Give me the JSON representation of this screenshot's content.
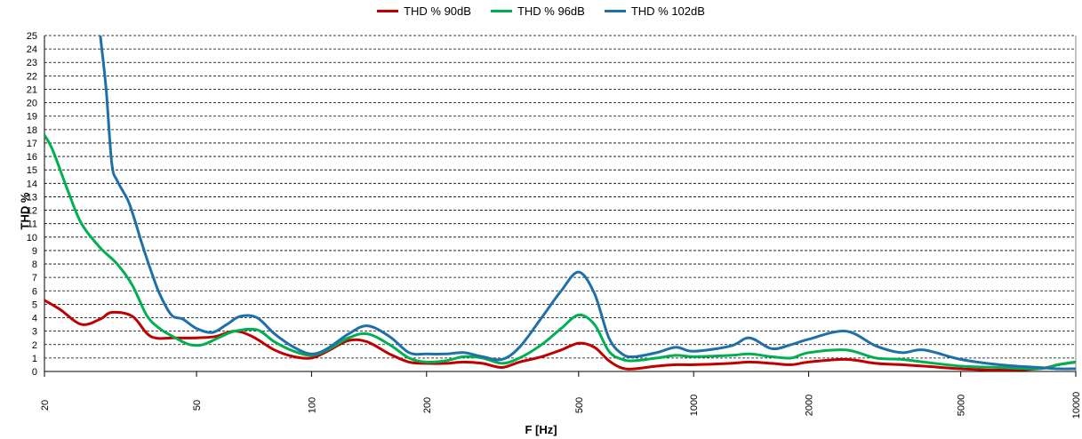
{
  "chart_data": {
    "type": "line",
    "xlabel": "F [Hz]",
    "ylabel": "THD %",
    "x_scale": "log",
    "xlim": [
      20,
      10000
    ],
    "ylim": [
      0,
      25
    ],
    "x_ticks": [
      20,
      50,
      100,
      200,
      500,
      1000,
      2000,
      5000,
      10000
    ],
    "y_ticks": [
      0,
      1,
      2,
      3,
      4,
      5,
      6,
      7,
      8,
      9,
      10,
      11,
      12,
      13,
      14,
      15,
      16,
      17,
      18,
      19,
      20,
      21,
      22,
      23,
      24,
      25
    ],
    "grid": "horizontal-dashed",
    "legend": "top-center",
    "series": [
      {
        "name": "THD % 90dB",
        "color": "#c00000",
        "points": [
          [
            20,
            5.3
          ],
          [
            22,
            4.6
          ],
          [
            25,
            3.5
          ],
          [
            28,
            3.9
          ],
          [
            30,
            4.4
          ],
          [
            34,
            4.1
          ],
          [
            38,
            2.6
          ],
          [
            44,
            2.5
          ],
          [
            50,
            2.5
          ],
          [
            56,
            2.6
          ],
          [
            63,
            3.0
          ],
          [
            70,
            2.6
          ],
          [
            80,
            1.6
          ],
          [
            90,
            1.1
          ],
          [
            100,
            1.0
          ],
          [
            110,
            1.5
          ],
          [
            125,
            2.3
          ],
          [
            140,
            2.2
          ],
          [
            160,
            1.3
          ],
          [
            180,
            0.7
          ],
          [
            200,
            0.6
          ],
          [
            225,
            0.6
          ],
          [
            250,
            0.7
          ],
          [
            280,
            0.6
          ],
          [
            315,
            0.3
          ],
          [
            350,
            0.7
          ],
          [
            400,
            1.1
          ],
          [
            450,
            1.6
          ],
          [
            500,
            2.1
          ],
          [
            550,
            1.8
          ],
          [
            600,
            0.8
          ],
          [
            650,
            0.25
          ],
          [
            700,
            0.2
          ],
          [
            800,
            0.4
          ],
          [
            900,
            0.5
          ],
          [
            1000,
            0.5
          ],
          [
            1250,
            0.6
          ],
          [
            1400,
            0.7
          ],
          [
            1600,
            0.6
          ],
          [
            1800,
            0.5
          ],
          [
            2000,
            0.7
          ],
          [
            2500,
            0.9
          ],
          [
            3000,
            0.6
          ],
          [
            3500,
            0.5
          ],
          [
            4000,
            0.4
          ],
          [
            5000,
            0.2
          ],
          [
            6300,
            0.1
          ],
          [
            8000,
            0.2
          ],
          [
            9000,
            0.5
          ],
          [
            10000,
            0.7
          ]
        ]
      },
      {
        "name": "THD % 96dB",
        "color": "#00b050",
        "points": [
          [
            20,
            17.6
          ],
          [
            21,
            16.5
          ],
          [
            23,
            13.5
          ],
          [
            25,
            11
          ],
          [
            28,
            9.2
          ],
          [
            31,
            8.0
          ],
          [
            34,
            6.4
          ],
          [
            37,
            4.2
          ],
          [
            40,
            3.2
          ],
          [
            44,
            2.5
          ],
          [
            48,
            2.0
          ],
          [
            52,
            2.0
          ],
          [
            58,
            2.6
          ],
          [
            63,
            3.0
          ],
          [
            72,
            3.1
          ],
          [
            80,
            2.2
          ],
          [
            90,
            1.5
          ],
          [
            100,
            1.2
          ],
          [
            110,
            1.6
          ],
          [
            125,
            2.5
          ],
          [
            140,
            2.8
          ],
          [
            160,
            2.0
          ],
          [
            180,
            1.0
          ],
          [
            200,
            0.7
          ],
          [
            225,
            0.8
          ],
          [
            250,
            1.1
          ],
          [
            280,
            1.0
          ],
          [
            315,
            0.6
          ],
          [
            350,
            1.0
          ],
          [
            400,
            2.0
          ],
          [
            450,
            3.2
          ],
          [
            500,
            4.2
          ],
          [
            550,
            3.5
          ],
          [
            600,
            1.5
          ],
          [
            650,
            0.9
          ],
          [
            700,
            0.8
          ],
          [
            800,
            1.0
          ],
          [
            900,
            1.2
          ],
          [
            1000,
            1.1
          ],
          [
            1250,
            1.2
          ],
          [
            1400,
            1.3
          ],
          [
            1600,
            1.1
          ],
          [
            1800,
            1.0
          ],
          [
            2000,
            1.4
          ],
          [
            2500,
            1.6
          ],
          [
            3000,
            1.0
          ],
          [
            3500,
            0.9
          ],
          [
            4000,
            0.7
          ],
          [
            5000,
            0.4
          ],
          [
            6300,
            0.3
          ],
          [
            8000,
            0.2
          ],
          [
            9000,
            0.5
          ],
          [
            10000,
            0.7
          ]
        ]
      },
      {
        "name": "THD % 102dB",
        "color": "#1f6fa8",
        "points": [
          [
            28,
            25
          ],
          [
            29,
            21
          ],
          [
            30,
            15.5
          ],
          [
            31,
            14.2
          ],
          [
            33,
            12.8
          ],
          [
            34,
            11.8
          ],
          [
            36,
            9.5
          ],
          [
            38,
            7.5
          ],
          [
            40,
            5.8
          ],
          [
            43,
            4.2
          ],
          [
            46,
            3.9
          ],
          [
            50,
            3.2
          ],
          [
            55,
            2.9
          ],
          [
            60,
            3.5
          ],
          [
            65,
            4.1
          ],
          [
            72,
            4.0
          ],
          [
            80,
            2.8
          ],
          [
            90,
            1.8
          ],
          [
            100,
            1.3
          ],
          [
            110,
            1.7
          ],
          [
            125,
            2.8
          ],
          [
            140,
            3.4
          ],
          [
            160,
            2.6
          ],
          [
            180,
            1.4
          ],
          [
            200,
            1.3
          ],
          [
            225,
            1.3
          ],
          [
            250,
            1.4
          ],
          [
            280,
            1.1
          ],
          [
            315,
            0.9
          ],
          [
            350,
            1.8
          ],
          [
            400,
            4.0
          ],
          [
            450,
            6.0
          ],
          [
            500,
            7.4
          ],
          [
            550,
            5.8
          ],
          [
            600,
            2.5
          ],
          [
            650,
            1.3
          ],
          [
            700,
            1.1
          ],
          [
            800,
            1.4
          ],
          [
            900,
            1.8
          ],
          [
            1000,
            1.5
          ],
          [
            1250,
            1.9
          ],
          [
            1400,
            2.5
          ],
          [
            1600,
            1.7
          ],
          [
            1800,
            2.0
          ],
          [
            2000,
            2.4
          ],
          [
            2500,
            3.0
          ],
          [
            3000,
            1.9
          ],
          [
            3500,
            1.4
          ],
          [
            4000,
            1.6
          ],
          [
            5000,
            0.9
          ],
          [
            6300,
            0.5
          ],
          [
            8000,
            0.3
          ],
          [
            9000,
            0.2
          ],
          [
            10000,
            0.2
          ]
        ]
      }
    ]
  }
}
